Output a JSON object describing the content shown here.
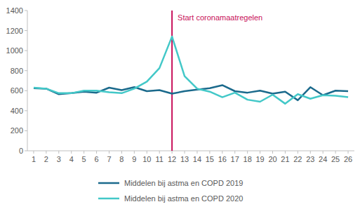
{
  "chart_data": {
    "type": "line",
    "x": [
      1,
      2,
      3,
      4,
      5,
      6,
      7,
      8,
      9,
      10,
      11,
      12,
      13,
      14,
      15,
      16,
      17,
      18,
      19,
      20,
      21,
      22,
      23,
      24,
      25,
      26
    ],
    "xlim": [
      0.5,
      26.5
    ],
    "xticks": [
      1,
      2,
      3,
      4,
      5,
      6,
      7,
      8,
      9,
      10,
      11,
      12,
      13,
      14,
      15,
      16,
      17,
      18,
      19,
      20,
      21,
      22,
      23,
      24,
      25,
      26
    ],
    "ylim": [
      0,
      1400
    ],
    "yticks": [
      0,
      200,
      400,
      600,
      800,
      1000,
      1200,
      1400
    ],
    "grid": false,
    "legend": "bottom",
    "series": [
      {
        "name": "Middelen bij astma en COPD 2019",
        "color": "#1b6a8c",
        "values": [
          625,
          620,
          565,
          575,
          590,
          580,
          630,
          605,
          635,
          595,
          605,
          570,
          595,
          610,
          625,
          655,
          595,
          580,
          600,
          570,
          590,
          505,
          635,
          555,
          600,
          595
        ]
      },
      {
        "name": "Middelen bij astma en COPD 2020",
        "color": "#43c8c8",
        "values": [
          630,
          620,
          575,
          575,
          600,
          600,
          585,
          575,
          620,
          690,
          825,
          1140,
          745,
          620,
          590,
          535,
          580,
          510,
          490,
          560,
          470,
          565,
          520,
          555,
          550,
          535
        ]
      }
    ],
    "annotations": [
      {
        "x": 12,
        "text": "Start coronamaatregelen",
        "color": "#c8105a"
      }
    ]
  }
}
